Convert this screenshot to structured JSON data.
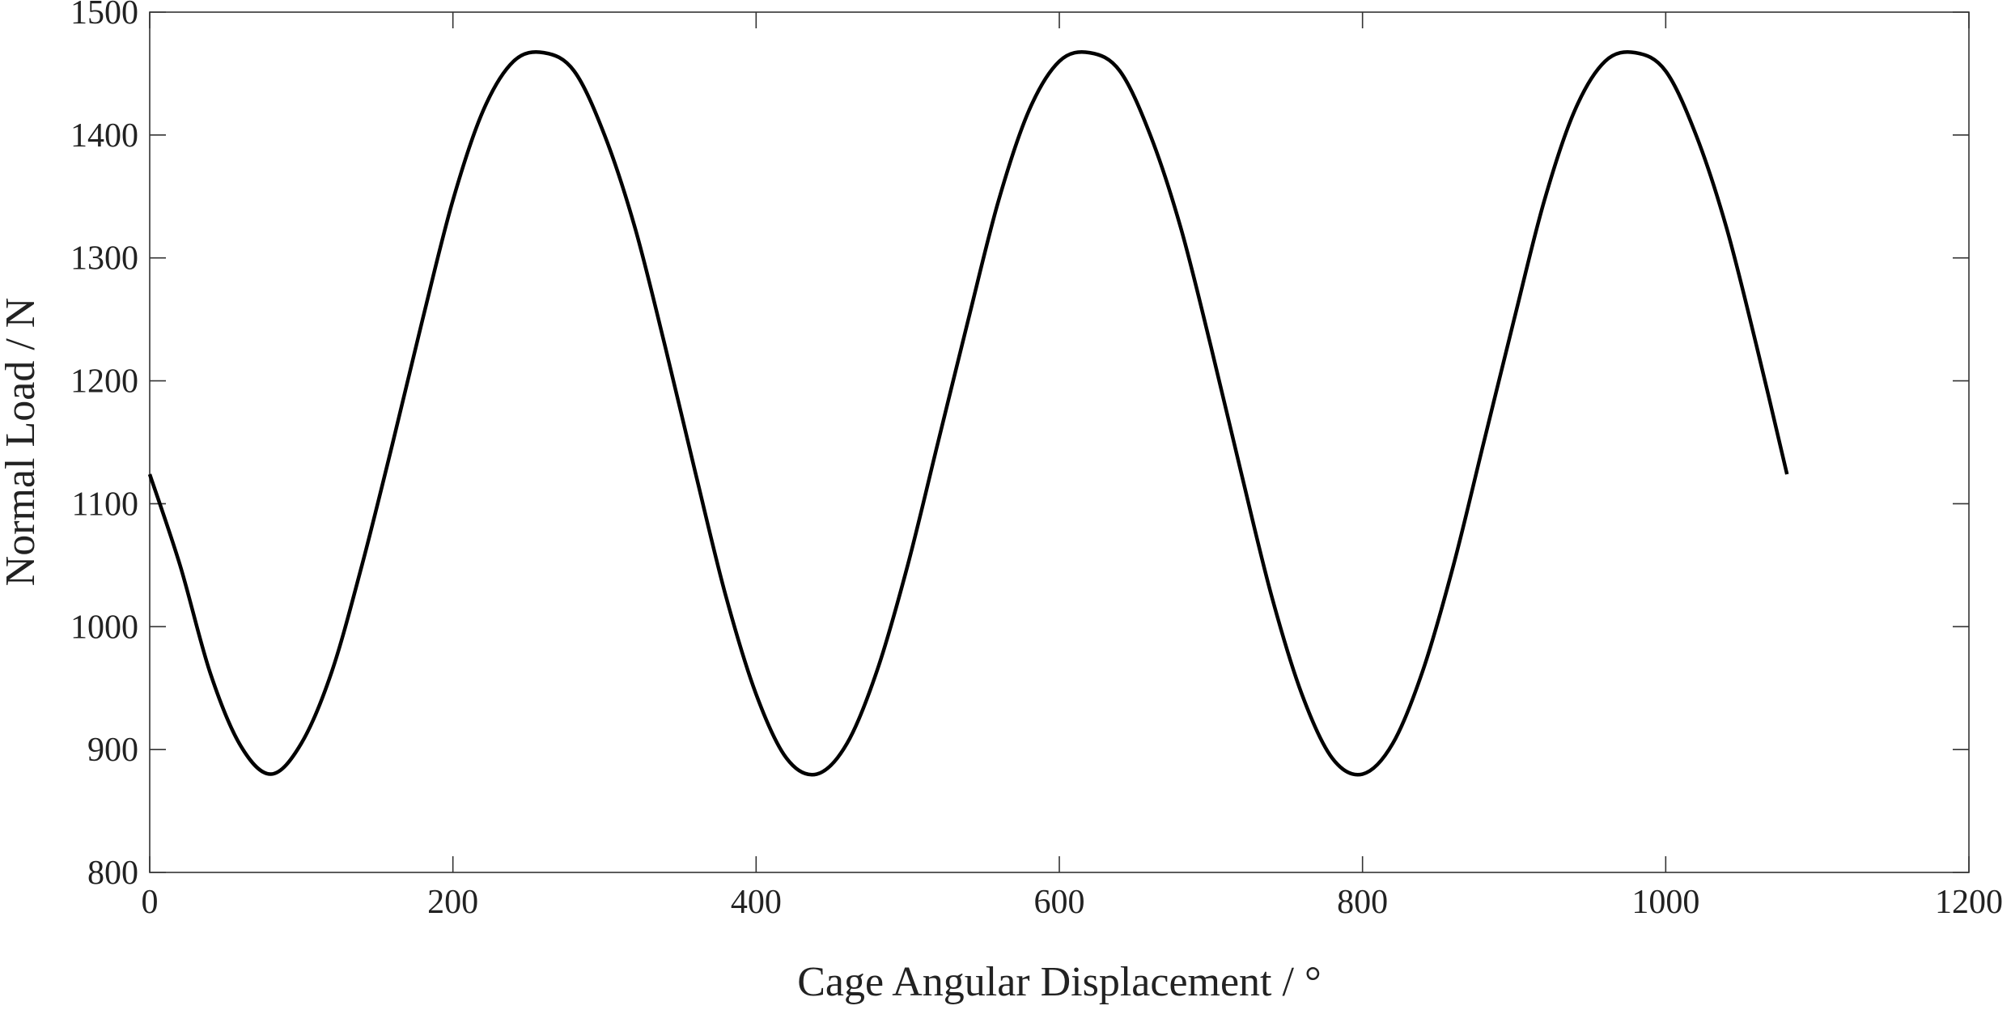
{
  "chart_data": {
    "type": "line",
    "title": "",
    "xlabel": "Cage Angular Displacement / °",
    "ylabel": "Normal Load / N",
    "xlim": [
      0,
      1200
    ],
    "ylim": [
      800,
      1500
    ],
    "xticks": [
      0,
      200,
      400,
      600,
      800,
      1000,
      1200
    ],
    "yticks": [
      800,
      900,
      1000,
      1100,
      1200,
      1300,
      1400,
      1500
    ],
    "xtick_labels": [
      "0",
      "200",
      "400",
      "600",
      "800",
      "1000",
      "1200"
    ],
    "ytick_labels": [
      "800",
      "900",
      "1000",
      "1100",
      "1200",
      "1300",
      "1400",
      "1500"
    ],
    "grid": false,
    "legend": "none",
    "series": [
      {
        "color": "#000000",
        "x": [
          0,
          20,
          40,
          60,
          80,
          100,
          120,
          140,
          160,
          180,
          200,
          220,
          240,
          260,
          280,
          300,
          320,
          340,
          360,
          380,
          400,
          420,
          440,
          460,
          480,
          500,
          520,
          540,
          560,
          580,
          600,
          620,
          640,
          660,
          680,
          700,
          720,
          740,
          760,
          780,
          800,
          820,
          840,
          860,
          880,
          900,
          920,
          940,
          960,
          980,
          1000,
          1020,
          1040,
          1060,
          1080
        ],
        "y": [
          1124,
          1050,
          962,
          903,
          880,
          905,
          963,
          1050,
          1148,
          1250,
          1347,
          1420,
          1460,
          1467,
          1452,
          1400,
          1325,
          1228,
          1125,
          1025,
          945,
          893,
          880,
          905,
          965,
          1050,
          1150,
          1250,
          1347,
          1420,
          1460,
          1467,
          1452,
          1400,
          1325,
          1228,
          1125,
          1025,
          945,
          893,
          880,
          905,
          965,
          1050,
          1150,
          1250,
          1347,
          1420,
          1460,
          1467,
          1452,
          1400,
          1325,
          1228,
          1124
        ]
      }
    ]
  }
}
